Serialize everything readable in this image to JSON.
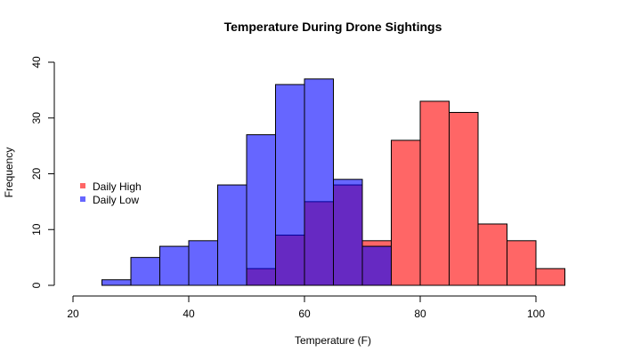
{
  "chart_data": {
    "type": "histogram",
    "title": "Temperature During Drone Sightings",
    "xlabel": "Temperature (F)",
    "ylabel": "Frequency",
    "xlim": [
      20,
      105
    ],
    "ylim": [
      0,
      40
    ],
    "x_ticks": [
      20,
      40,
      60,
      80,
      100
    ],
    "y_ticks": [
      0,
      10,
      20,
      30,
      40
    ],
    "legend_position": "left",
    "series": [
      {
        "name": "Daily High",
        "color": "#FF0000",
        "alpha": 0.6,
        "bins": [
          {
            "from": 50,
            "to": 55,
            "count": 3
          },
          {
            "from": 55,
            "to": 60,
            "count": 9
          },
          {
            "from": 60,
            "to": 65,
            "count": 15
          },
          {
            "from": 65,
            "to": 70,
            "count": 18
          },
          {
            "from": 70,
            "to": 75,
            "count": 8
          },
          {
            "from": 75,
            "to": 80,
            "count": 26
          },
          {
            "from": 80,
            "to": 85,
            "count": 33
          },
          {
            "from": 85,
            "to": 90,
            "count": 31
          },
          {
            "from": 90,
            "to": 95,
            "count": 11
          },
          {
            "from": 95,
            "to": 100,
            "count": 8
          },
          {
            "from": 100,
            "to": 105,
            "count": 3
          }
        ]
      },
      {
        "name": "Daily Low",
        "color": "#0000FF",
        "alpha": 0.6,
        "bins": [
          {
            "from": 25,
            "to": 30,
            "count": 1
          },
          {
            "from": 30,
            "to": 35,
            "count": 5
          },
          {
            "from": 35,
            "to": 40,
            "count": 7
          },
          {
            "from": 40,
            "to": 45,
            "count": 8
          },
          {
            "from": 45,
            "to": 50,
            "count": 18
          },
          {
            "from": 50,
            "to": 55,
            "count": 27
          },
          {
            "from": 55,
            "to": 60,
            "count": 36
          },
          {
            "from": 60,
            "to": 65,
            "count": 37
          },
          {
            "from": 65,
            "to": 70,
            "count": 19
          },
          {
            "from": 70,
            "to": 75,
            "count": 7
          }
        ]
      }
    ]
  }
}
